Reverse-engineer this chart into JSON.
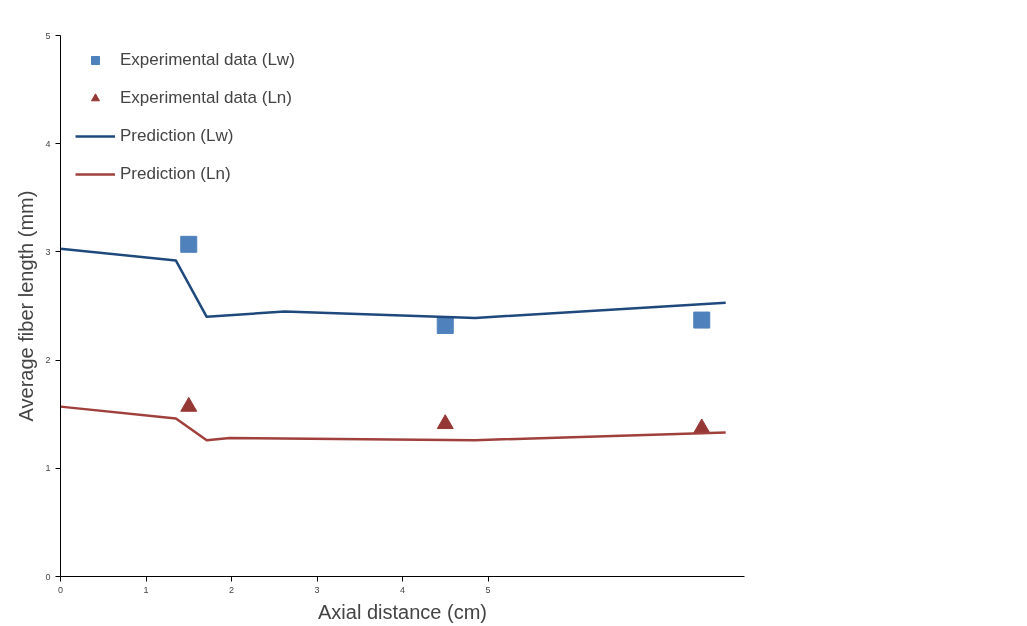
{
  "chart_data": {
    "type": "line",
    "xlabel": "Axial distance (cm)",
    "ylabel": "Average fiber length (mm)",
    "xlim": [
      0,
      8
    ],
    "xticks": [
      0,
      1,
      2,
      3,
      4,
      5
    ],
    "ylim": [
      0,
      5
    ],
    "yticks": [
      0,
      1,
      2,
      3,
      4,
      5
    ],
    "grid": false,
    "legend": "top left",
    "series": [
      {
        "name": "Experimental data (Lw)",
        "type": "scatter",
        "marker": "square",
        "color": "#4f81bd",
        "x": [
          1.5,
          4.5,
          7.5
        ],
        "values": [
          3.07,
          2.32,
          2.37
        ]
      },
      {
        "name": "Experimental data (Ln)",
        "type": "scatter",
        "marker": "triangle",
        "color": "#953735",
        "x": [
          1.5,
          4.5,
          7.5
        ],
        "values": [
          1.57,
          1.41,
          1.37
        ]
      },
      {
        "name": "Prediction (Lw)",
        "color": "#1f497d",
        "x": [
          0,
          1.35,
          1.71,
          2.62,
          4.85,
          7.78
        ],
        "values": [
          3.03,
          2.92,
          2.4,
          2.45,
          2.39,
          2.53
        ]
      },
      {
        "name": "Prediction (Ln)",
        "color": "#a0403c",
        "x": [
          0,
          1.35,
          1.71,
          1.98,
          4.85,
          7.78
        ],
        "values": [
          1.57,
          1.46,
          1.26,
          1.28,
          1.26,
          1.33
        ]
      }
    ]
  }
}
